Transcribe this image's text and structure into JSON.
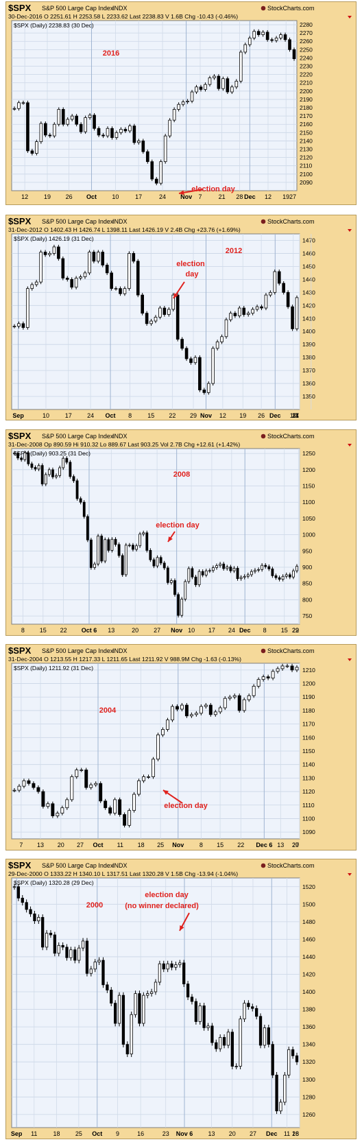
{
  "charts": [
    {
      "symbol": "$SPX",
      "name": "S&P 500 Large Cap Index",
      "exchange": "INDX",
      "brand": "StockCharts.com",
      "stats": "30-Dec-2016    O 2251.61   H 2253.58   L 2233.62   Last 2238.83   V 1.6B   Chg -10.43 (-0.46%)",
      "legend": "$SPX (Daily) 2238.83 (30 Dec)",
      "year_label": "2016",
      "annotation": [
        "election day"
      ]
    },
    {
      "symbol": "$SPX",
      "name": "S&P 500 Large Cap Index",
      "exchange": "INDX",
      "brand": "StockCharts.com",
      "stats": "31-Dec-2012   O 1402.43   H 1426.74   L 1398.11   Last 1426.19   V 2.4B   Chg +23.76 (+1.69%)",
      "legend": "$SPX (Daily) 1426.19 (31 Dec)",
      "year_label": "2012",
      "annotation": [
        "election",
        "day"
      ]
    },
    {
      "symbol": "$SPX",
      "name": "S&P 500 Large Cap Index",
      "exchange": "INDX",
      "brand": "StockCharts.com",
      "stats": "31-Dec-2008   Op 890.59   Hi 910.32   Lo 889.67   Last 903.25   Vol 2.7B   Chg +12.61 (+1.42%)",
      "legend": "$SPX (Daily) 903.25 (31 Dec)",
      "year_label": "2008",
      "annotation": [
        "election day"
      ]
    },
    {
      "symbol": "$SPX",
      "name": "S&P 500 Large Cap Index",
      "exchange": "INDX",
      "brand": "StockCharts.com",
      "stats": "31-Dec-2004   O 1213.55   H 1217.33   L 1211.65   Last 1211.92   V 988.9M   Chg -1.63 (-0.13%)",
      "legend": "$SPX (Daily) 1211.92 (31 Dec)",
      "year_label": "2004",
      "annotation": [
        "election day"
      ]
    },
    {
      "symbol": "$SPX",
      "name": "S&P 500 Large Cap Index",
      "exchange": "INDX",
      "brand": "StockCharts.com",
      "stats": "29-Dec-2000   O 1333.22   H 1340.10   L 1317.51   Last 1320.28   V 1.5B   Chg -13.94 (-1.04%)",
      "legend": "$SPX (Daily) 1320.28 (29 Dec)",
      "year_label": "2000",
      "annotation": [
        "election day",
        "(no winner declared)"
      ]
    }
  ],
  "chart_data": [
    {
      "type": "line",
      "title": "$SPX S&P 500 Large Cap Index INDX",
      "x_ticks": [
        "12",
        "19",
        "26",
        "Oct",
        "10",
        "17",
        "24",
        "Nov",
        "7",
        "21",
        "28",
        "Dec",
        "12",
        "19",
        "27"
      ],
      "y_ticks": [
        2090,
        2100,
        2110,
        2120,
        2130,
        2140,
        2150,
        2160,
        2170,
        2180,
        2190,
        2200,
        2210,
        2220,
        2230,
        2240,
        2250,
        2260,
        2270,
        2280
      ],
      "ylim": [
        2080,
        2285
      ],
      "series": [
        {
          "values": [
            2179,
            2186,
            2186,
            2128,
            2125,
            2139,
            2161,
            2147,
            2146,
            2160,
            2178,
            2160,
            2166,
            2170,
            2160,
            2151,
            2168,
            2171,
            2155,
            2147,
            2146,
            2155,
            2144,
            2150,
            2154,
            2152,
            2158,
            2138,
            2140,
            2127,
            2115,
            2094,
            2089,
            2115,
            2146,
            2165,
            2178,
            2184,
            2187,
            2188,
            2199,
            2205,
            2202,
            2208,
            2216,
            2218,
            2203,
            2215,
            2199,
            2205,
            2212,
            2247,
            2256,
            2264,
            2272,
            2268,
            2271,
            2262,
            2261,
            2264,
            2268,
            2262,
            2250,
            2239
          ]
        }
      ],
      "grid": true
    },
    {
      "type": "line",
      "title": "$SPX S&P 500 Large Cap Index INDX",
      "x_ticks": [
        "Sep",
        "10",
        "17",
        "24",
        "Oct",
        "8",
        "15",
        "22",
        "29",
        "Nov",
        "12",
        "19",
        "26",
        "Dec",
        "10",
        "17",
        "24",
        "31"
      ],
      "y_ticks": [
        1350,
        1360,
        1370,
        1380,
        1390,
        1400,
        1410,
        1420,
        1430,
        1440,
        1450,
        1460,
        1470
      ],
      "ylim": [
        1340,
        1475
      ],
      "series": [
        {
          "values": [
            1404,
            1406,
            1403,
            1433,
            1436,
            1438,
            1461,
            1459,
            1460,
            1465,
            1456,
            1441,
            1440,
            1434,
            1441,
            1442,
            1445,
            1461,
            1454,
            1461,
            1451,
            1445,
            1433,
            1433,
            1429,
            1433,
            1460,
            1454,
            1428,
            1414,
            1406,
            1408,
            1411,
            1418,
            1413,
            1417,
            1428,
            1394,
            1387,
            1379,
            1376,
            1380,
            1355,
            1353,
            1360,
            1387,
            1392,
            1396,
            1409,
            1414,
            1412,
            1418,
            1413,
            1414,
            1417,
            1419,
            1418,
            1428,
            1430,
            1446,
            1437,
            1430,
            1419,
            1402,
            1426
          ]
        }
      ],
      "grid": true
    },
    {
      "type": "line",
      "title": "$SPX S&P 500 Large Cap Index INDX",
      "x_ticks": [
        "8",
        "15",
        "22",
        "Oct 6",
        "13",
        "20",
        "27",
        "Nov",
        "10",
        "17",
        "24",
        "Dec",
        "8",
        "15",
        "22",
        "29"
      ],
      "y_ticks": [
        750,
        800,
        850,
        900,
        950,
        1000,
        1050,
        1100,
        1150,
        1200,
        1250
      ],
      "ylim": [
        725,
        1265
      ],
      "series": [
        {
          "values": [
            1251,
            1236,
            1231,
            1252,
            1218,
            1207,
            1202,
            1213,
            1156,
            1185,
            1200,
            1178,
            1182,
            1206,
            1235,
            1223,
            1179,
            1166,
            1111,
            1100,
            1056,
            984,
            899,
            910,
            996,
            919,
            985,
            952,
            986,
            970,
            936,
            877,
            968,
            968,
            955,
            966,
            1002,
            1006,
            952,
            923,
            904,
            930,
            913,
            898,
            853,
            859,
            816,
            752,
            802,
            856,
            896,
            870,
            846,
            887,
            876,
            889,
            890,
            899,
            905,
            910,
            896,
            901,
            889,
            897,
            865,
            869,
            872,
            877,
            887,
            891,
            893,
            906,
            902,
            895,
            874,
            868,
            863,
            872,
            877,
            870,
            889,
            903
          ]
        }
      ],
      "grid": true
    },
    {
      "type": "line",
      "title": "$SPX S&P 500 Large Cap Index INDX",
      "x_ticks": [
        "7",
        "13",
        "20",
        "27",
        "Oct",
        "11",
        "18",
        "25",
        "Nov",
        "8",
        "15",
        "22",
        "Dec 6",
        "13",
        "20",
        "27"
      ],
      "y_ticks": [
        1090,
        1100,
        1110,
        1120,
        1130,
        1140,
        1150,
        1160,
        1170,
        1180,
        1190,
        1200,
        1210
      ],
      "ylim": [
        1085,
        1215
      ],
      "series": [
        {
          "values": [
            1121,
            1124,
            1128,
            1126,
            1123,
            1120,
            1109,
            1111,
            1102,
            1104,
            1108,
            1114,
            1131,
            1136,
            1136,
            1123,
            1125,
            1126,
            1113,
            1108,
            1104,
            1114,
            1103,
            1095,
            1106,
            1118,
            1128,
            1131,
            1131,
            1144,
            1162,
            1166,
            1173,
            1183,
            1181,
            1184,
            1176,
            1177,
            1178,
            1183,
            1184,
            1177,
            1179,
            1182,
            1189,
            1190,
            1191,
            1180,
            1188,
            1191,
            1198,
            1203,
            1205,
            1204,
            1209,
            1211,
            1213,
            1213,
            1210,
            1212
          ]
        }
      ],
      "grid": true
    },
    {
      "type": "line",
      "title": "$SPX S&P 500 Large Cap Index INDX",
      "x_ticks": [
        "Sep",
        "11",
        "18",
        "25",
        "Oct",
        "9",
        "16",
        "23",
        "Nov 6",
        "13",
        "20",
        "27",
        "Dec",
        "11",
        "18",
        "26"
      ],
      "y_ticks": [
        1260,
        1280,
        1300,
        1320,
        1340,
        1360,
        1380,
        1400,
        1420,
        1440,
        1460,
        1480,
        1500,
        1520
      ],
      "ylim": [
        1245,
        1530
      ],
      "series": [
        {
          "values": [
            1520,
            1507,
            1502,
            1494,
            1489,
            1481,
            1485,
            1451,
            1467,
            1465,
            1444,
            1453,
            1451,
            1439,
            1448,
            1436,
            1450,
            1458,
            1421,
            1426,
            1434,
            1436,
            1408,
            1402,
            1387,
            1364,
            1396,
            1340,
            1329,
            1374,
            1398,
            1364,
            1396,
            1398,
            1400,
            1411,
            1432,
            1426,
            1432,
            1428,
            1431,
            1433,
            1409,
            1394,
            1389,
            1366,
            1384,
            1359,
            1361,
            1342,
            1335,
            1348,
            1339,
            1354,
            1315,
            1315,
            1369,
            1387,
            1383,
            1381,
            1372,
            1339,
            1359,
            1340,
            1305,
            1264,
            1274,
            1305,
            1334,
            1327,
            1320
          ]
        }
      ],
      "grid": true
    }
  ]
}
